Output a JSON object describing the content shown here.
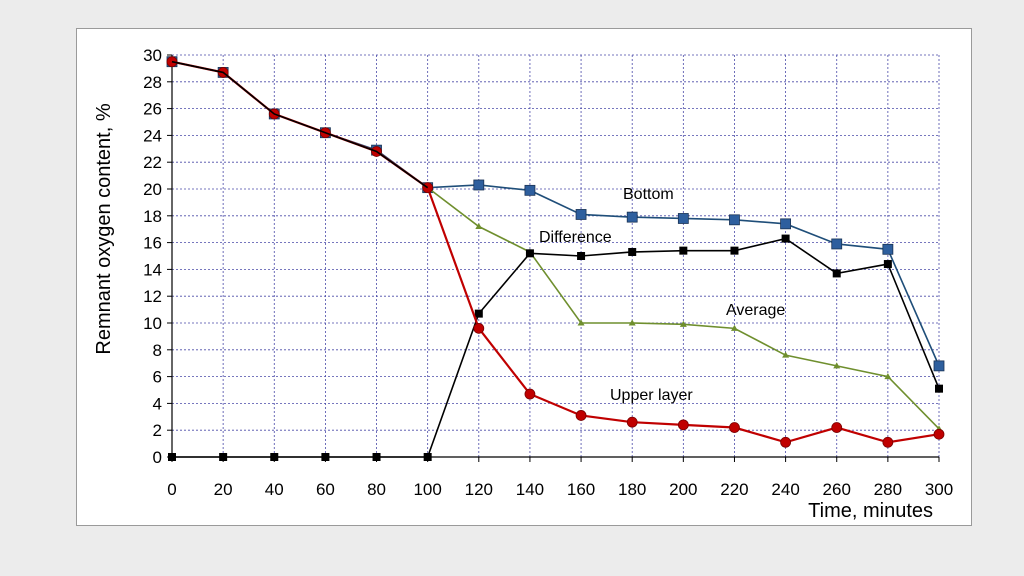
{
  "chart_data": {
    "type": "line",
    "title": "",
    "xlabel": "Time, minutes",
    "ylabel": "Remnant oxygen content, %",
    "xlim": [
      0,
      300
    ],
    "ylim": [
      0,
      30
    ],
    "x_ticks": [
      "0",
      "20",
      "40",
      "60",
      "80",
      "100",
      "120",
      "140",
      "160",
      "180",
      "200",
      "220",
      "240",
      "260",
      "280",
      "300"
    ],
    "y_ticks": [
      "0",
      "2",
      "4",
      "6",
      "8",
      "10",
      "12",
      "14",
      "16",
      "18",
      "20",
      "22",
      "24",
      "26",
      "28",
      "30"
    ],
    "grid": true,
    "x": [
      0,
      20,
      40,
      60,
      80,
      100,
      120,
      140,
      160,
      180,
      200,
      220,
      240,
      260,
      280,
      300
    ],
    "series": [
      {
        "name": "Bottom",
        "color": "#1f4e79",
        "marker_color": "#2e5f9e",
        "marker": "square",
        "values": [
          29.5,
          28.7,
          25.6,
          24.2,
          22.9,
          20.1,
          20.3,
          19.9,
          18.1,
          17.9,
          17.8,
          17.7,
          17.4,
          15.9,
          15.5,
          6.8
        ]
      },
      {
        "name": "Difference",
        "color": "#000000",
        "marker_color": "#000000",
        "marker": "square-small",
        "values": [
          0,
          0,
          0,
          0,
          0,
          0,
          10.7,
          15.2,
          15.0,
          15.3,
          15.4,
          15.4,
          16.3,
          13.7,
          14.4,
          5.1
        ]
      },
      {
        "name": "Average",
        "color": "#6f8f2e",
        "marker_color": "#6f8f2e",
        "marker": "triangle",
        "values": [
          null,
          null,
          null,
          null,
          null,
          20.1,
          17.2,
          15.3,
          10.0,
          10.0,
          9.9,
          9.6,
          7.6,
          6.8,
          6.0,
          2.1
        ]
      },
      {
        "name": "Upper layer",
        "color": "#c00000",
        "marker_color": "#c00000",
        "marker": "circle",
        "values": [
          29.5,
          28.7,
          25.6,
          24.2,
          22.8,
          20.1,
          9.6,
          4.7,
          3.1,
          2.6,
          2.4,
          2.2,
          1.1,
          2.2,
          1.1,
          1.7
        ]
      },
      {
        "name": "",
        "color": "#000000",
        "marker_color": "#000000",
        "marker": "none",
        "values": [
          29.5,
          28.7,
          25.6,
          24.2,
          22.8,
          20.1,
          null,
          null,
          null,
          null,
          null,
          null,
          null,
          null,
          null,
          null
        ]
      }
    ],
    "labels": [
      {
        "text": "Bottom",
        "series": "Bottom"
      },
      {
        "text": "Difference",
        "series": "Difference"
      },
      {
        "text": "Average",
        "series": "Average"
      },
      {
        "text": "Upper layer",
        "series": "Upper layer"
      }
    ]
  }
}
